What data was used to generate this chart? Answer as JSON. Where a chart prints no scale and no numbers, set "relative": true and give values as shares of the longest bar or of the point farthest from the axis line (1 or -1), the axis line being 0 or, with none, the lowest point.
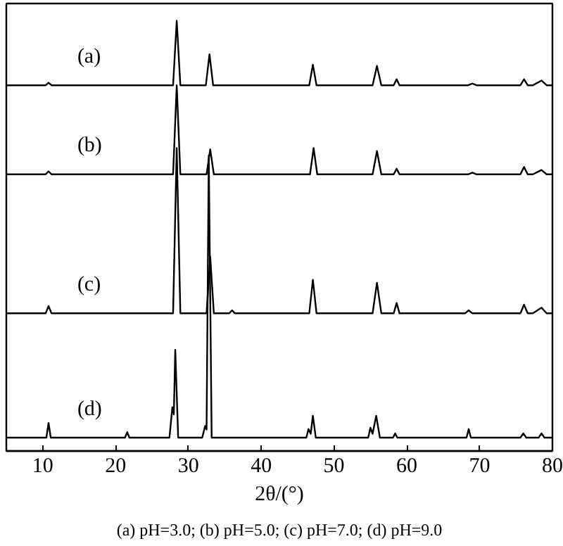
{
  "chart_data": {
    "type": "line",
    "relative": true,
    "xlabel": "2θ/(°)",
    "xlim": [
      5,
      80
    ],
    "xticks": [
      10,
      20,
      30,
      40,
      50,
      60,
      70,
      80
    ],
    "grid": false,
    "tick_labels": "x",
    "annotations": [
      "(a) pH=3.0; (b) pH=5.0; (c) pH=7.0; (d) pH=9.0"
    ],
    "series": [
      {
        "name": "(a)",
        "color": "#000000",
        "x": [
          5,
          10.4,
          10.8,
          11.2,
          27.9,
          28.4,
          28.9,
          32.4,
          32.9,
          33.4,
          46.6,
          47.1,
          47.6,
          55.3,
          55.9,
          56.5,
          58.2,
          58.6,
          59.0,
          68.4,
          69,
          69.6,
          75.6,
          76.1,
          76.6,
          77.3,
          78.5,
          79.2,
          80
        ],
        "values": [
          0.85,
          0.85,
          0.856,
          0.85,
          0.85,
          1.0,
          0.85,
          0.85,
          0.922,
          0.85,
          0.85,
          0.898,
          0.85,
          0.85,
          0.895,
          0.85,
          0.85,
          0.864,
          0.85,
          0.85,
          0.854,
          0.85,
          0.85,
          0.864,
          0.85,
          0.85,
          0.861,
          0.85,
          0.85
        ]
      },
      {
        "name": "(b)",
        "color": "#000000",
        "x": [
          5,
          10.4,
          10.8,
          11.2,
          27.9,
          28.4,
          28.9,
          32.5,
          33.0,
          33.5,
          46.7,
          47.2,
          47.7,
          55.3,
          55.9,
          56.5,
          58.2,
          58.6,
          59.0,
          68.4,
          69,
          69.6,
          75.6,
          76.1,
          76.6,
          77.3,
          78.5,
          79.2,
          80
        ],
        "values": [
          0.643,
          0.643,
          0.65,
          0.643,
          0.643,
          0.85,
          0.643,
          0.643,
          0.701,
          0.643,
          0.643,
          0.704,
          0.643,
          0.643,
          0.697,
          0.643,
          0.643,
          0.656,
          0.643,
          0.643,
          0.647,
          0.643,
          0.643,
          0.66,
          0.643,
          0.643,
          0.653,
          0.643,
          0.643
        ]
      },
      {
        "name": "(c)",
        "color": "#000000",
        "x": [
          5,
          10.4,
          10.8,
          11.2,
          27.9,
          28.4,
          28.9,
          32.5,
          33.0,
          33.5,
          35.6,
          36,
          36.4,
          46.6,
          47.1,
          47.6,
          55.3,
          55.9,
          56.5,
          58.2,
          58.6,
          59.0,
          68.0,
          68.5,
          69.0,
          75.6,
          76.1,
          76.6,
          77.3,
          78.5,
          79.2,
          80
        ],
        "values": [
          0.32,
          0.32,
          0.337,
          0.32,
          0.32,
          0.704,
          0.32,
          0.32,
          0.452,
          0.32,
          0.32,
          0.327,
          0.32,
          0.32,
          0.398,
          0.32,
          0.32,
          0.391,
          0.32,
          0.32,
          0.344,
          0.32,
          0.32,
          0.327,
          0.32,
          0.32,
          0.34,
          0.32,
          0.32,
          0.333,
          0.32,
          0.32
        ]
      },
      {
        "name": "(d)",
        "color": "#000000",
        "x": [
          5,
          10.5,
          10.8,
          11.1,
          21.3,
          21.6,
          21.9,
          27.4,
          27.8,
          28.0,
          28.2,
          28.6,
          31.9,
          32.3,
          32.5,
          32.8,
          33.2,
          46.2,
          46.5,
          46.8,
          47.1,
          47.5,
          54.7,
          55.0,
          55.3,
          55.8,
          56.3,
          58.1,
          58.4,
          58.7,
          68.2,
          68.5,
          68.8,
          75.6,
          76.0,
          76.4,
          78.1,
          78.5,
          78.9,
          80
        ],
        "values": [
          0.031,
          0.031,
          0.065,
          0.031,
          0.031,
          0.044,
          0.031,
          0.031,
          0.102,
          0.085,
          0.235,
          0.031,
          0.031,
          0.058,
          0.05,
          0.687,
          0.031,
          0.031,
          0.051,
          0.04,
          0.082,
          0.031,
          0.031,
          0.054,
          0.04,
          0.082,
          0.031,
          0.031,
          0.041,
          0.031,
          0.031,
          0.051,
          0.031,
          0.031,
          0.041,
          0.031,
          0.031,
          0.041,
          0.031,
          0.031
        ]
      }
    ]
  }
}
